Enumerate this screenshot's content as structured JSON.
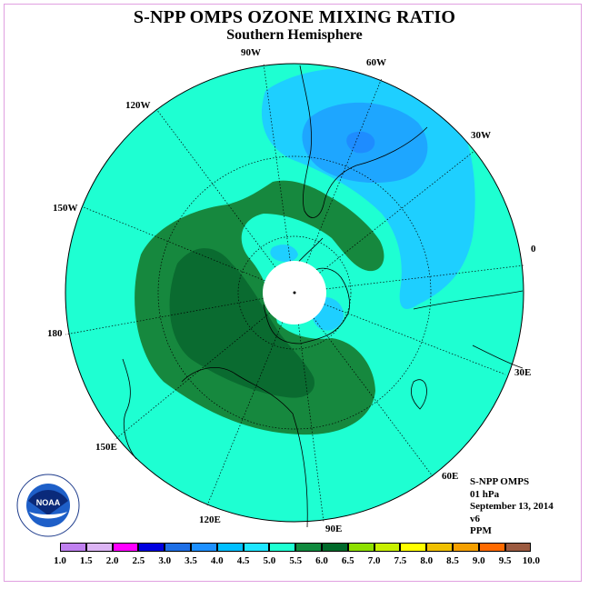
{
  "title": "S-NPP OMPS OZONE MIXING RATIO",
  "subtitle": "Southern Hemisphere",
  "longitude_labels": {
    "w90": "90W",
    "w60": "60W",
    "w30": "30W",
    "zero": "0",
    "e30": "30E",
    "e60": "60E",
    "e90": "90E",
    "e120": "120E",
    "e150": "150E",
    "l180": "180",
    "w150": "150W",
    "w120": "120W"
  },
  "info": {
    "instrument": "S-NPP OMPS",
    "level": "01 hPa",
    "date": "September 13, 2014",
    "version": "v6",
    "units": "PPM"
  },
  "logo_text": "NOAA",
  "colorbar": {
    "labels": [
      "1.0",
      "1.5",
      "2.0",
      "2.5",
      "3.0",
      "3.5",
      "4.0",
      "4.5",
      "5.0",
      "5.5",
      "6.0",
      "6.5",
      "7.0",
      "7.5",
      "8.0",
      "8.5",
      "9.0",
      "9.5",
      "10.0"
    ],
    "colors": [
      "#c080f0",
      "#dcb4f4",
      "#ff00ff",
      "#0000e0",
      "#1e6fe6",
      "#1e90ff",
      "#00bfff",
      "#1ee6ff",
      "#1effd2",
      "#108a3e",
      "#006a2a",
      "#8ee000",
      "#c8f000",
      "#ffff00",
      "#f0c000",
      "#f5a000",
      "#ff6a00",
      "#ff0000",
      "#9c5a40"
    ]
  },
  "map_colors": {
    "level_4_5_5_0": "#1effd2",
    "level_4_0_4_5": "#1ecfff",
    "level_3_5_4_0": "#1ea6ff",
    "level_3_0_3_5": "#1e8cff",
    "level_5_5_6_0": "#16883e",
    "level_6_0_6_5": "#0a6b30"
  }
}
